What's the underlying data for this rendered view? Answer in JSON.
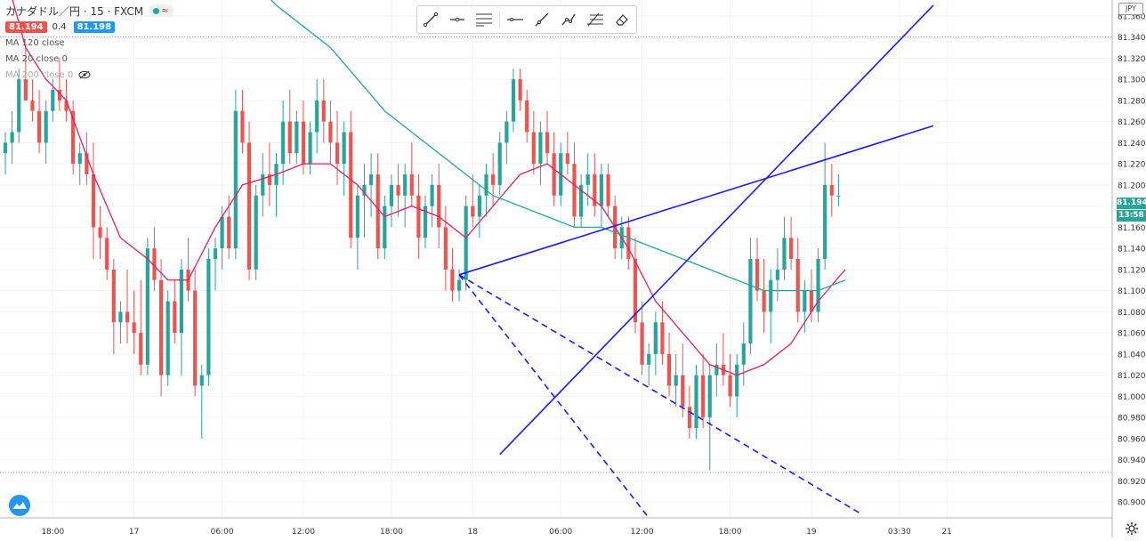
{
  "header": {
    "symbol": "カナダドル／円 · 15 · FXCM",
    "status_glyph": "≈",
    "bid": "81.194",
    "spread": "0.4",
    "ask": "81.198",
    "indicators": [
      "MA 120 close",
      "MA 20 close 0",
      "MA 200 close 0"
    ]
  },
  "currency_label": "JPY",
  "last_price_label": "81.194",
  "countdown_label": "13:58",
  "toolbar": {
    "tools": [
      "trend-line-icon",
      "horizontal-ray-icon",
      "parallel-channel-icon",
      "horizontal-line-icon",
      "ray-icon",
      "polyline-icon",
      "fib-retracement-icon",
      "eraser-icon"
    ]
  },
  "chart_data": {
    "type": "candlestick",
    "symbol": "CAD/JPY",
    "interval": "15",
    "source": "FXCM",
    "y_axis_ticks": [
      "81.360",
      "81.340",
      "81.320",
      "81.300",
      "81.280",
      "81.260",
      "81.240",
      "81.220",
      "81.200",
      "81.180",
      "81.160",
      "81.140",
      "81.120",
      "81.100",
      "81.080",
      "81.060",
      "81.040",
      "81.020",
      "81.000",
      "80.980",
      "80.960",
      "80.940",
      "80.920",
      "80.900"
    ],
    "x_axis_ticks": [
      "18:00",
      "17",
      "06:00",
      "12:00",
      "18:00",
      "18",
      "06:00",
      "12:00",
      "18:00",
      "19",
      "03:30",
      "21"
    ],
    "ylim": [
      80.885,
      81.375
    ],
    "x_range": [
      0,
      124
    ],
    "grid": true,
    "colors": {
      "up": "#26a69a",
      "down": "#ef5350",
      "ma20": "#e91e63",
      "ma120": "#26a69a",
      "drawings": "#1a1aff",
      "grid": "#f0f3fa",
      "axis_text": "#333333"
    },
    "candles": [
      [
        81.23,
        81.25,
        81.21,
        81.24
      ],
      [
        81.24,
        81.27,
        81.22,
        81.25
      ],
      [
        81.25,
        81.31,
        81.24,
        81.3
      ],
      [
        81.3,
        81.33,
        81.28,
        81.28
      ],
      [
        81.28,
        81.3,
        81.26,
        81.27
      ],
      [
        81.27,
        81.29,
        81.23,
        81.24
      ],
      [
        81.24,
        81.28,
        81.22,
        81.27
      ],
      [
        81.27,
        81.3,
        81.26,
        81.29
      ],
      [
        81.29,
        81.32,
        81.27,
        81.28
      ],
      [
        81.28,
        81.3,
        81.26,
        81.27
      ],
      [
        81.27,
        81.28,
        81.21,
        81.22
      ],
      [
        81.22,
        81.24,
        81.2,
        81.23
      ],
      [
        81.23,
        81.25,
        81.2,
        81.21
      ],
      [
        81.21,
        81.24,
        81.13,
        81.16
      ],
      [
        81.16,
        81.18,
        81.13,
        81.15
      ],
      [
        81.15,
        81.16,
        81.11,
        81.12
      ],
      [
        81.12,
        81.13,
        81.04,
        81.07
      ],
      [
        81.07,
        81.09,
        81.05,
        81.08
      ],
      [
        81.08,
        81.12,
        81.05,
        81.07
      ],
      [
        81.07,
        81.1,
        81.04,
        81.06
      ],
      [
        81.06,
        81.11,
        81.02,
        81.03
      ],
      [
        81.03,
        81.15,
        81.02,
        81.14
      ],
      [
        81.14,
        81.16,
        81.1,
        81.11
      ],
      [
        81.11,
        81.13,
        81.0,
        81.02
      ],
      [
        81.02,
        81.1,
        81.01,
        81.09
      ],
      [
        81.09,
        81.11,
        81.05,
        81.06
      ],
      [
        81.06,
        81.13,
        81.02,
        81.12
      ],
      [
        81.12,
        81.15,
        81.09,
        81.1
      ],
      [
        81.1,
        81.12,
        81.0,
        81.01
      ],
      [
        81.01,
        81.03,
        80.96,
        81.02
      ],
      [
        81.02,
        81.14,
        81.01,
        81.13
      ],
      [
        81.13,
        81.15,
        81.1,
        81.14
      ],
      [
        81.14,
        81.18,
        81.12,
        81.17
      ],
      [
        81.17,
        81.19,
        81.13,
        81.14
      ],
      [
        81.14,
        81.29,
        81.13,
        81.27
      ],
      [
        81.27,
        81.29,
        81.23,
        81.24
      ],
      [
        81.24,
        81.26,
        81.11,
        81.12
      ],
      [
        81.12,
        81.2,
        81.11,
        81.19
      ],
      [
        81.19,
        81.23,
        81.17,
        81.21
      ],
      [
        81.21,
        81.24,
        81.18,
        81.2
      ],
      [
        81.2,
        81.23,
        81.17,
        81.22
      ],
      [
        81.22,
        81.28,
        81.2,
        81.26
      ],
      [
        81.26,
        81.29,
        81.22,
        81.23
      ],
      [
        81.23,
        81.27,
        81.22,
        81.26
      ],
      [
        81.26,
        81.28,
        81.21,
        81.22
      ],
      [
        81.22,
        81.26,
        81.21,
        81.25
      ],
      [
        81.25,
        81.3,
        81.23,
        81.28
      ],
      [
        81.28,
        81.3,
        81.24,
        81.26
      ],
      [
        81.26,
        81.28,
        81.22,
        81.24
      ],
      [
        81.24,
        81.27,
        81.2,
        81.22
      ],
      [
        81.22,
        81.26,
        81.19,
        81.25
      ],
      [
        81.25,
        81.27,
        81.14,
        81.15
      ],
      [
        81.15,
        81.2,
        81.12,
        81.19
      ],
      [
        81.19,
        81.22,
        81.15,
        81.2
      ],
      [
        81.2,
        81.23,
        81.17,
        81.21
      ],
      [
        81.21,
        81.23,
        81.13,
        81.14
      ],
      [
        81.14,
        81.19,
        81.13,
        81.18
      ],
      [
        81.18,
        81.21,
        81.16,
        81.2
      ],
      [
        81.2,
        81.22,
        81.17,
        81.19
      ],
      [
        81.19,
        81.22,
        81.16,
        81.21
      ],
      [
        81.21,
        81.24,
        81.18,
        81.19
      ],
      [
        81.19,
        81.21,
        81.13,
        81.15
      ],
      [
        81.15,
        81.19,
        81.14,
        81.18
      ],
      [
        81.18,
        81.21,
        81.16,
        81.2
      ],
      [
        81.2,
        81.22,
        81.14,
        81.16
      ],
      [
        81.16,
        81.18,
        81.1,
        81.12
      ],
      [
        81.12,
        81.14,
        81.09,
        81.1
      ],
      [
        81.1,
        81.12,
        81.09,
        81.11
      ],
      [
        81.11,
        81.19,
        81.1,
        81.18
      ],
      [
        81.18,
        81.21,
        81.16,
        81.17
      ],
      [
        81.17,
        81.2,
        81.15,
        81.19
      ],
      [
        81.19,
        81.22,
        81.17,
        81.21
      ],
      [
        81.21,
        81.23,
        81.18,
        81.2
      ],
      [
        81.2,
        81.25,
        81.19,
        81.24
      ],
      [
        81.24,
        81.27,
        81.22,
        81.26
      ],
      [
        81.26,
        81.31,
        81.25,
        81.3
      ],
      [
        81.3,
        81.31,
        81.27,
        81.28
      ],
      [
        81.28,
        81.29,
        81.24,
        81.25
      ],
      [
        81.25,
        81.27,
        81.21,
        81.22
      ],
      [
        81.22,
        81.26,
        81.2,
        81.25
      ],
      [
        81.25,
        81.27,
        81.22,
        81.23
      ],
      [
        81.23,
        81.25,
        81.18,
        81.19
      ],
      [
        81.19,
        81.24,
        81.18,
        81.23
      ],
      [
        81.23,
        81.25,
        81.21,
        81.22
      ],
      [
        81.22,
        81.24,
        81.16,
        81.17
      ],
      [
        81.17,
        81.21,
        81.16,
        81.2
      ],
      [
        81.2,
        81.23,
        81.18,
        81.21
      ],
      [
        81.21,
        81.23,
        81.17,
        81.18
      ],
      [
        81.18,
        81.22,
        81.16,
        81.21
      ],
      [
        81.21,
        81.22,
        81.17,
        81.18
      ],
      [
        81.18,
        81.19,
        81.13,
        81.14
      ],
      [
        81.14,
        81.17,
        81.13,
        81.16
      ],
      [
        81.16,
        81.17,
        81.12,
        81.13
      ],
      [
        81.13,
        81.15,
        81.06,
        81.07
      ],
      [
        81.07,
        81.09,
        81.02,
        81.03
      ],
      [
        81.03,
        81.05,
        81.01,
        81.04
      ],
      [
        81.04,
        81.08,
        81.02,
        81.07
      ],
      [
        81.07,
        81.09,
        81.03,
        81.04
      ],
      [
        81.04,
        81.06,
        81.0,
        81.01
      ],
      [
        81.01,
        81.04,
        80.99,
        81.02
      ],
      [
        81.02,
        81.05,
        80.98,
        80.99
      ],
      [
        80.99,
        81.01,
        80.96,
        80.97
      ],
      [
        80.97,
        81.03,
        80.96,
        81.02
      ],
      [
        81.02,
        81.04,
        80.97,
        80.98
      ],
      [
        80.98,
        81.03,
        80.93,
        81.02
      ],
      [
        81.02,
        81.05,
        81.0,
        81.03
      ],
      [
        81.03,
        81.06,
        81.01,
        81.02
      ],
      [
        81.02,
        81.04,
        80.99,
        81.0
      ],
      [
        81.0,
        81.04,
        80.98,
        81.03
      ],
      [
        81.03,
        81.07,
        81.01,
        81.05
      ],
      [
        81.05,
        81.15,
        81.04,
        81.13
      ],
      [
        81.13,
        81.15,
        81.09,
        81.1
      ],
      [
        81.1,
        81.13,
        81.06,
        81.08
      ],
      [
        81.08,
        81.12,
        81.05,
        81.11
      ],
      [
        81.11,
        81.14,
        81.09,
        81.12
      ],
      [
        81.12,
        81.17,
        81.11,
        81.15
      ],
      [
        81.15,
        81.17,
        81.12,
        81.13
      ],
      [
        81.13,
        81.15,
        81.07,
        81.08
      ],
      [
        81.08,
        81.11,
        81.06,
        81.1
      ],
      [
        81.1,
        81.12,
        81.07,
        81.08
      ],
      [
        81.08,
        81.14,
        81.07,
        81.13
      ],
      [
        81.13,
        81.24,
        81.12,
        81.2
      ],
      [
        81.2,
        81.22,
        81.17,
        81.19
      ],
      [
        81.19,
        81.21,
        81.18,
        81.19
      ]
    ],
    "moving_averages": [
      {
        "name": "MA 20 close",
        "color": "#e91e63",
        "points": [
          [
            0,
            81.4
          ],
          [
            3,
            81.33
          ],
          [
            6,
            81.3
          ],
          [
            9,
            81.28
          ],
          [
            13,
            81.21
          ],
          [
            17,
            81.15
          ],
          [
            21,
            81.13
          ],
          [
            24,
            81.11
          ],
          [
            27,
            81.11
          ],
          [
            31,
            81.16
          ],
          [
            35,
            81.2
          ],
          [
            40,
            81.21
          ],
          [
            44,
            81.22
          ],
          [
            48,
            81.22
          ],
          [
            52,
            81.2
          ],
          [
            56,
            81.17
          ],
          [
            60,
            81.18
          ],
          [
            64,
            81.17
          ],
          [
            68,
            81.15
          ],
          [
            72,
            81.18
          ],
          [
            76,
            81.21
          ],
          [
            80,
            81.22
          ],
          [
            84,
            81.2
          ],
          [
            88,
            81.18
          ],
          [
            92,
            81.14
          ],
          [
            96,
            81.09
          ],
          [
            100,
            81.06
          ],
          [
            104,
            81.03
          ],
          [
            108,
            81.02
          ],
          [
            112,
            81.03
          ],
          [
            116,
            81.05
          ],
          [
            120,
            81.09
          ],
          [
            124,
            81.12
          ]
        ]
      },
      {
        "name": "MA 120 close",
        "color": "#26a69a",
        "points": [
          [
            37,
            81.39
          ],
          [
            40,
            81.37
          ],
          [
            44,
            81.35
          ],
          [
            48,
            81.33
          ],
          [
            52,
            81.3
          ],
          [
            56,
            81.27
          ],
          [
            60,
            81.25
          ],
          [
            64,
            81.23
          ],
          [
            68,
            81.21
          ],
          [
            72,
            81.19
          ],
          [
            76,
            81.18
          ],
          [
            80,
            81.17
          ],
          [
            84,
            81.16
          ],
          [
            88,
            81.16
          ],
          [
            92,
            81.15
          ],
          [
            96,
            81.14
          ],
          [
            100,
            81.13
          ],
          [
            104,
            81.12
          ],
          [
            108,
            81.11
          ],
          [
            112,
            81.1
          ],
          [
            116,
            81.1
          ],
          [
            120,
            81.1
          ],
          [
            124,
            81.11
          ]
        ]
      }
    ],
    "drawings": [
      {
        "type": "trend-line",
        "style": "solid",
        "from": [
          67,
          81.115
        ],
        "to": [
          137,
          81.256
        ]
      },
      {
        "type": "trend-line",
        "style": "solid",
        "from": [
          73,
          80.945
        ],
        "to": [
          137,
          81.37
        ]
      },
      {
        "type": "trend-line",
        "style": "dashed",
        "from": [
          67,
          81.115
        ],
        "to": [
          126,
          80.89
        ]
      },
      {
        "type": "trend-line",
        "style": "dashed",
        "from": [
          67,
          81.115
        ],
        "to": [
          95,
          80.885
        ]
      }
    ],
    "horizontal_levels": [
      81.34,
      80.928
    ]
  }
}
